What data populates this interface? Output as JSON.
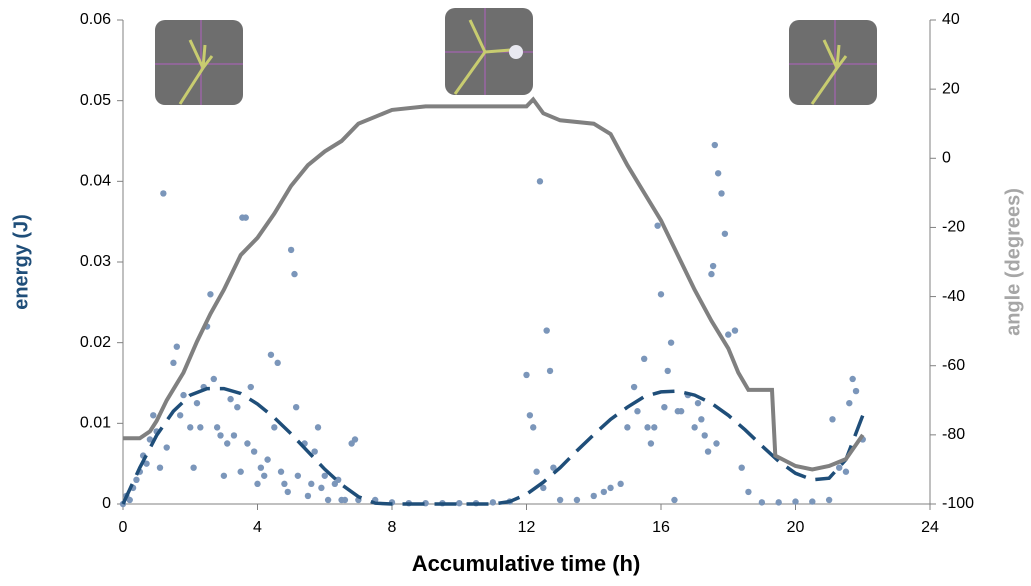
{
  "chart_data": {
    "type": "combo",
    "xlabel": "Accumulative time (h)",
    "ylabel": "energy (J)",
    "y2label": "angle (degrees)",
    "xlim": [
      0,
      24
    ],
    "xticks": [
      0,
      4,
      8,
      12,
      16,
      20,
      24
    ],
    "ylim": [
      0,
      0.06
    ],
    "yticks": [
      0,
      0.01,
      0.02,
      0.03,
      0.04,
      0.05,
      0.06
    ],
    "y2lim": [
      -100,
      40
    ],
    "y2ticks": [
      -100,
      -80,
      -60,
      -40,
      -20,
      0,
      20,
      40
    ],
    "ylabel_color": "#1f4e79",
    "y2label_color": "#a6a6a6",
    "series": [
      {
        "type": "scatter",
        "color": "#7b96ba",
        "x": [
          0,
          0.1,
          0.2,
          0.3,
          0.4,
          0.5,
          0.6,
          0.7,
          0.8,
          0.9,
          1.0,
          1.1,
          1.2,
          1.3,
          1.5,
          1.6,
          1.7,
          1.8,
          2.0,
          2.1,
          2.2,
          2.3,
          2.4,
          2.5,
          2.6,
          2.7,
          2.8,
          2.9,
          3.0,
          3.1,
          3.2,
          3.3,
          3.4,
          3.5,
          3.55,
          3.65,
          3.7,
          3.8,
          3.9,
          4.0,
          4.1,
          4.2,
          4.3,
          4.4,
          4.5,
          4.6,
          4.7,
          4.8,
          4.9,
          5.0,
          5.1,
          5.15,
          5.2,
          5.4,
          5.5,
          5.6,
          5.7,
          5.8,
          5.9,
          6.0,
          6.1,
          6.3,
          6.4,
          6.5,
          6.6,
          6.8,
          6.9,
          7.0,
          7.5,
          8.0,
          8.5,
          9.0,
          9.5,
          10.0,
          10.5,
          11.0,
          11.5,
          12.0,
          12.1,
          12.2,
          12.3,
          12.4,
          12.5,
          12.6,
          12.7,
          12.8,
          13.0,
          13.5,
          14.0,
          14.3,
          14.5,
          14.8,
          15.0,
          15.2,
          15.3,
          15.5,
          15.6,
          15.7,
          15.8,
          15.9,
          16.0,
          16.1,
          16.2,
          16.3,
          16.4,
          16.5,
          16.6,
          16.8,
          17.0,
          17.1,
          17.2,
          17.3,
          17.4,
          17.5,
          17.55,
          17.6,
          17.65,
          17.7,
          17.8,
          17.9,
          18.0,
          18.2,
          18.4,
          18.6,
          19.0,
          19.5,
          20.0,
          20.5,
          21.0,
          21.1,
          21.3,
          21.5,
          21.6,
          21.7,
          21.8,
          22.0
        ],
        "values": [
          0,
          0.001,
          0.0005,
          0.002,
          0.003,
          0.004,
          0.006,
          0.005,
          0.008,
          0.011,
          0.009,
          0.0045,
          0.0385,
          0.007,
          0.0175,
          0.0195,
          0.011,
          0.0135,
          0.0095,
          0.0045,
          0.0125,
          0.0095,
          0.0145,
          0.022,
          0.026,
          0.0155,
          0.0095,
          0.0085,
          0.0035,
          0.0075,
          0.013,
          0.0085,
          0.012,
          0.004,
          0.0355,
          0.0355,
          0.0075,
          0.0145,
          0.0065,
          0.0025,
          0.0045,
          0.0035,
          0.0055,
          0.0185,
          0.0095,
          0.0175,
          0.004,
          0.0025,
          0.0015,
          0.0315,
          0.0285,
          0.012,
          0.0035,
          0.0075,
          0.001,
          0.0025,
          0.0065,
          0.0095,
          0.002,
          0.0035,
          0.0005,
          0.0025,
          0.003,
          0.0005,
          0.0005,
          0.0075,
          0.008,
          0.0005,
          0.0005,
          0.0002,
          0.0001,
          0.0001,
          0.0001,
          0.0001,
          0.0001,
          0.0002,
          0.0003,
          0.016,
          0.011,
          0.0095,
          0.004,
          0.04,
          0.002,
          0.0215,
          0.0165,
          0.0045,
          0.0005,
          0.0005,
          0.001,
          0.0015,
          0.002,
          0.0025,
          0.0095,
          0.0145,
          0.0115,
          0.018,
          0.0095,
          0.0075,
          0.0095,
          0.0345,
          0.026,
          0.012,
          0.0165,
          0.02,
          0.0005,
          0.0115,
          0.0115,
          0.0135,
          0.0095,
          0.0125,
          0.0105,
          0.0085,
          0.0065,
          0.0285,
          0.0295,
          0.0445,
          0.0075,
          0.041,
          0.0385,
          0.0335,
          0.021,
          0.0215,
          0.0045,
          0.0015,
          0.0002,
          0.0002,
          0.0003,
          0.0003,
          0.0005,
          0.0105,
          0.0045,
          0.004,
          0.0125,
          0.0155,
          0.014,
          0.008
        ]
      },
      {
        "type": "line",
        "color": "#1f4e79",
        "dash": true,
        "x": [
          0,
          0.5,
          1,
          1.5,
          2,
          2.5,
          3,
          3.5,
          4,
          4.5,
          5,
          5.5,
          6,
          6.5,
          7,
          7.5,
          8,
          9,
          10,
          11,
          11.5,
          12,
          12.5,
          13,
          13.5,
          14,
          14.5,
          15,
          15.5,
          16,
          16.5,
          17,
          17.5,
          18,
          18.5,
          19,
          19.5,
          20,
          20.5,
          21,
          21.5,
          22
        ],
        "values": [
          0,
          0.0045,
          0.0085,
          0.0115,
          0.0135,
          0.0143,
          0.0143,
          0.0137,
          0.0124,
          0.0107,
          0.0087,
          0.0065,
          0.0043,
          0.0024,
          0.0009,
          0.0001,
          0,
          0,
          0,
          0,
          0.0003,
          0.0012,
          0.0027,
          0.0045,
          0.0066,
          0.0086,
          0.0105,
          0.012,
          0.0133,
          0.0139,
          0.014,
          0.0135,
          0.0125,
          0.011,
          0.0092,
          0.0072,
          0.0053,
          0.0038,
          0.003,
          0.0032,
          0.0055,
          0.011
        ]
      },
      {
        "type": "line",
        "color": "#808080",
        "axis": "y2",
        "x": [
          0,
          0.5,
          0.8,
          1.0,
          1.3,
          1.8,
          2.2,
          2.6,
          3.0,
          3.5,
          4.0,
          4.5,
          5.0,
          5.5,
          6.0,
          6.5,
          7.0,
          7.5,
          8.0,
          9.0,
          10,
          11,
          12,
          12.2,
          12.5,
          13,
          14,
          14.5,
          15,
          15.5,
          16,
          16.5,
          17,
          17.5,
          18,
          18.3,
          18.6,
          19.3,
          19.4,
          20,
          20.5,
          21,
          21.5,
          22
        ],
        "values": [
          -81,
          -81,
          -79,
          -76,
          -70,
          -62,
          -53,
          -45,
          -38,
          -28,
          -23,
          -16,
          -8,
          -2,
          2,
          5,
          10,
          12,
          14,
          15,
          15,
          15,
          15,
          17,
          13,
          11,
          10,
          7,
          -2,
          -10,
          -18,
          -28,
          -38,
          -47,
          -55,
          -62,
          -67,
          -67,
          -86,
          -89,
          -90,
          -89,
          -87,
          -80
        ]
      }
    ]
  }
}
